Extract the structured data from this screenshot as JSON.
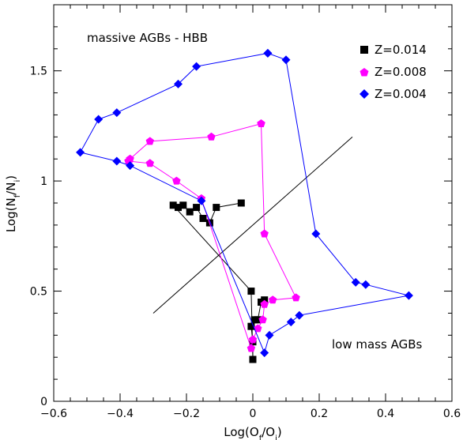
{
  "chart_data": {
    "type": "scatter",
    "title": "",
    "xlabel": "Log(O_f/O_i)",
    "ylabel": "Log(N_f/N_i)",
    "xlim": [
      -0.6,
      0.6
    ],
    "ylim": [
      0,
      1.8
    ],
    "xticks": [
      -0.6,
      -0.4,
      -0.2,
      0,
      0.2,
      0.4,
      0.6
    ],
    "xtick_labels": [
      "−0.6",
      "−0.4",
      "−0.2",
      "0",
      "0.2",
      "0.4",
      "0.6"
    ],
    "yticks": [
      0,
      0.5,
      1,
      1.5
    ],
    "ytick_labels": [
      "0",
      "0.5",
      "1",
      "1.5"
    ],
    "grid": false,
    "legend": "top-right",
    "annotations": [
      {
        "text": "massive AGBs - HBB",
        "x": -0.49,
        "y": 1.65
      },
      {
        "text": "low mass AGBs",
        "x": 0.24,
        "y": 0.25
      }
    ],
    "reference_line": {
      "x": [
        -0.3,
        0.3
      ],
      "y": [
        0.4,
        1.2
      ],
      "color": "#000000"
    },
    "series": [
      {
        "name": "Z=0.014",
        "color": "#000000",
        "marker": "square",
        "x": [
          -0.035,
          -0.11,
          -0.13,
          -0.15,
          -0.17,
          -0.19,
          -0.21,
          -0.225,
          -0.24,
          -0.005,
          0.0,
          0.0,
          -0.005,
          0.005,
          0.015,
          0.025,
          0.035
        ],
        "y": [
          0.9,
          0.88,
          0.81,
          0.83,
          0.88,
          0.86,
          0.89,
          0.88,
          0.89,
          0.5,
          0.19,
          0.27,
          0.34,
          0.37,
          0.37,
          0.45,
          0.46
        ]
      },
      {
        "name": "Z=0.008",
        "color": "#ff00ff",
        "marker": "pentagon",
        "x": [
          0.025,
          0.035,
          0.13,
          0.06,
          0.035,
          0.03,
          0.015,
          0.0,
          -0.005,
          -0.155,
          -0.23,
          -0.31,
          -0.375,
          -0.37,
          -0.31,
          -0.125,
          0.025
        ],
        "y": [
          1.26,
          0.76,
          0.47,
          0.46,
          0.44,
          0.37,
          0.33,
          0.28,
          0.24,
          0.92,
          1.0,
          1.08,
          1.09,
          1.1,
          1.18,
          1.2,
          1.26
        ]
      },
      {
        "name": "Z=0.004",
        "color": "#0000ff",
        "marker": "diamond",
        "x": [
          0.045,
          0.1,
          0.19,
          0.31,
          0.34,
          0.47,
          0.14,
          0.115,
          0.05,
          0.035,
          -0.155,
          -0.37,
          -0.41,
          -0.52,
          -0.465,
          -0.41,
          -0.225,
          -0.17,
          0.045
        ],
        "y": [
          1.58,
          1.55,
          0.76,
          0.54,
          0.53,
          0.48,
          0.39,
          0.36,
          0.3,
          0.22,
          0.91,
          1.07,
          1.09,
          1.13,
          1.28,
          1.31,
          1.44,
          1.52,
          1.58
        ]
      }
    ]
  }
}
